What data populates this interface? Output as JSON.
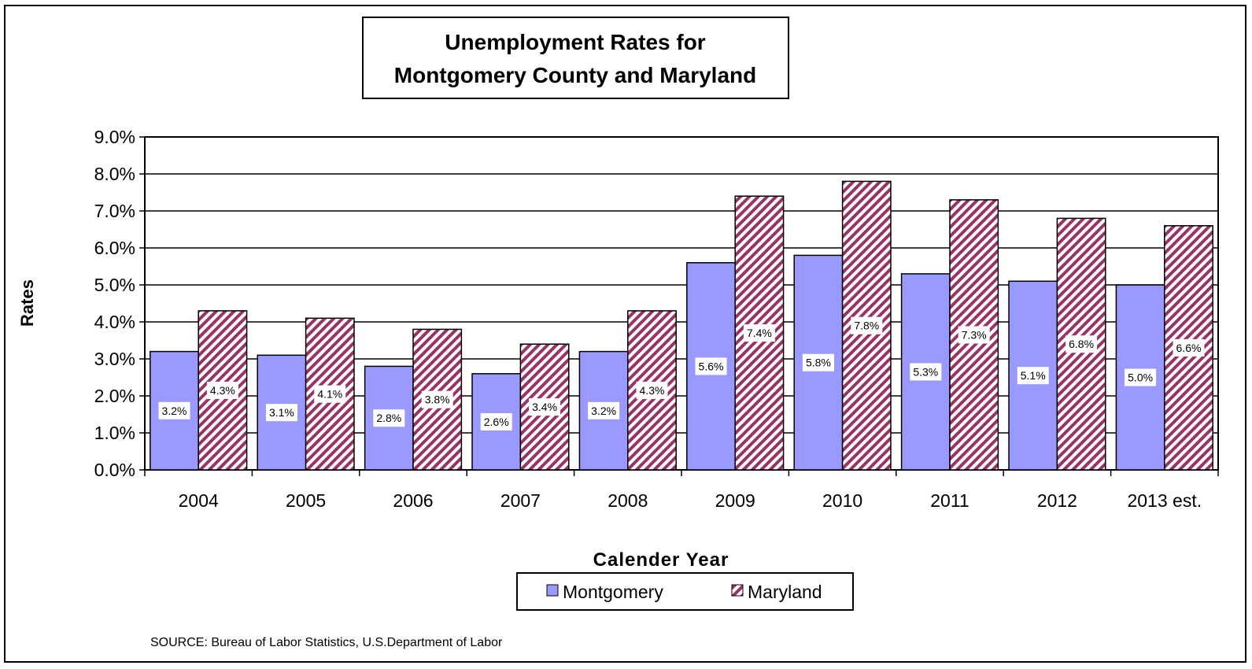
{
  "chart_data": {
    "type": "bar",
    "title_lines": [
      "Unemployment Rates for",
      "Montgomery County and Maryland"
    ],
    "xlabel": "Calender Year",
    "ylabel": "Rates",
    "categories": [
      "2004",
      "2005",
      "2006",
      "2007",
      "2008",
      "2009",
      "2010",
      "2011",
      "2012",
      "2013 est."
    ],
    "series": [
      {
        "name": "Montgomery",
        "color": "#9999ff",
        "values": [
          3.2,
          3.1,
          2.8,
          2.6,
          3.2,
          5.6,
          5.8,
          5.3,
          5.1,
          5.0
        ],
        "labels": [
          "3.2%",
          "3.1%",
          "2.8%",
          "2.6%",
          "3.2%",
          "5.6%",
          "5.8%",
          "5.3%",
          "5.1%",
          "5.0%"
        ]
      },
      {
        "name": "Maryland",
        "color": "#993366",
        "pattern": "diagonal-stripes",
        "values": [
          4.3,
          4.1,
          3.8,
          3.4,
          4.3,
          7.4,
          7.8,
          7.3,
          6.8,
          6.6
        ],
        "labels": [
          "4.3%",
          "4.1%",
          "3.8%",
          "3.4%",
          "4.3%",
          "7.4%",
          "7.8%",
          "7.3%",
          "6.8%",
          "6.6%"
        ]
      }
    ],
    "ylim": [
      0,
      9
    ],
    "yticks": [
      "0.0%",
      "1.0%",
      "2.0%",
      "3.0%",
      "4.0%",
      "5.0%",
      "6.0%",
      "7.0%",
      "8.0%",
      "9.0%"
    ],
    "grid": true,
    "legend_position": "bottom"
  },
  "source_note": "SOURCE:  Bureau of Labor Statistics, U.S.Department of Labor"
}
